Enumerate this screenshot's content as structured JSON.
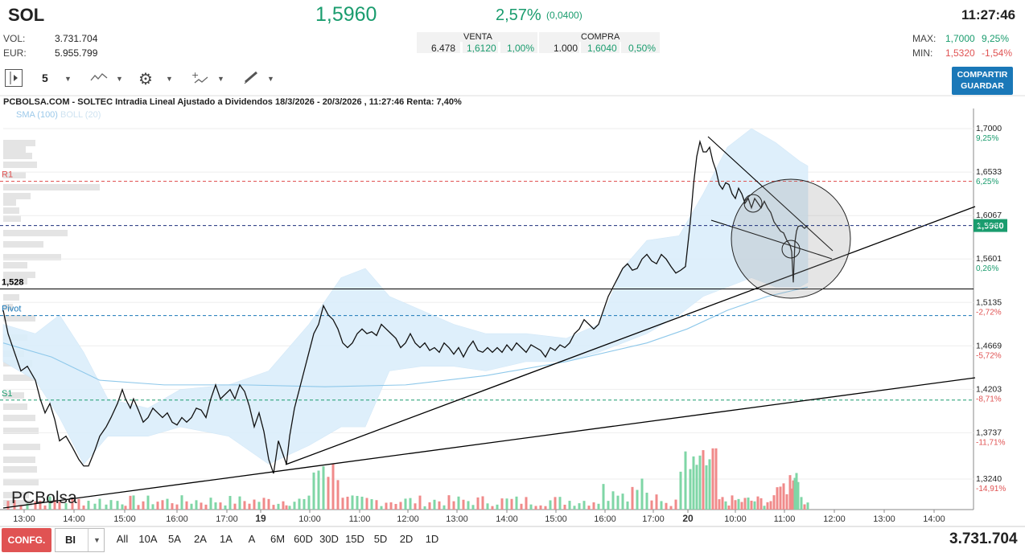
{
  "header": {
    "ticker": "SOL",
    "price": "1,5960",
    "change_pct": "2,57%",
    "change_abs": "(0,0400)",
    "time": "11:27:46",
    "vol_label": "VOL:",
    "vol_value": "3.731.704",
    "eur_label": "EUR:",
    "eur_value": "5.955.799",
    "venta_label": "VENTA",
    "venta_qty": "6.478",
    "venta_price": "1,6120",
    "venta_pct": "1,00%",
    "compra_label": "COMPRA",
    "compra_qty": "1.000",
    "compra_price": "1,6040",
    "compra_pct": "0,50%",
    "max_label": "MAX:",
    "max_value": "1,7000",
    "max_pct": "9,25%",
    "min_label": "MIN:",
    "min_value": "1,5320",
    "min_pct": "-1,54%"
  },
  "toolbar": {
    "interval": "5",
    "share_line1": "COMPARTIR",
    "share_line2": "GUARDAR",
    "icons": [
      "play-panel-icon",
      "line-chart-icon",
      "gear-icon",
      "indicators-icon",
      "draw-tool-icon"
    ]
  },
  "chart_title": "PCBOLSA.COM - SOLTEC Intradia Lineal Ajustado a Dividendos 18/3/2026 - 20/3/2026 , 11:27:46 Renta: 7,40%",
  "legend": {
    "sma": "SMA (100)",
    "boll": "BOLL (20)"
  },
  "watermark": "PCBolsa",
  "colors": {
    "up": "#1a9c6e",
    "down": "#e05353",
    "accent": "#1a78b8",
    "boll_fill": "#dbeefb",
    "sma": "#8ec8ea"
  },
  "chart_data": {
    "type": "line",
    "title": "PCBOLSA.COM - SOLTEC Intradia Lineal Ajustado a Dividendos 18/3/2026 - 20/3/2026 , 11:27:46 Renta: 7,40%",
    "x_tick_labels": [
      "13:00",
      "14:00",
      "15:00",
      "16:00",
      "17:00",
      "19",
      "10:00",
      "11:00",
      "12:00",
      "13:00",
      "14:00",
      "15:00",
      "16:00",
      "17:00",
      "20",
      "10:00",
      "11:00",
      "12:00",
      "13:00",
      "14:00"
    ],
    "y_ticks": [
      {
        "value": 1.7,
        "label": "1,7000",
        "pct": "9,25%"
      },
      {
        "value": 1.6533,
        "label": "1,6533",
        "pct": "6,25%"
      },
      {
        "value": 1.6067,
        "label": "1,6067",
        "pct": "3,26%"
      },
      {
        "value": 1.5601,
        "label": "1,5601",
        "pct": "0,26%"
      },
      {
        "value": 1.5135,
        "label": "1,5135",
        "pct": "-2,72%"
      },
      {
        "value": 1.4669,
        "label": "1,4669",
        "pct": "-5,72%"
      },
      {
        "value": 1.4203,
        "label": "1,4203",
        "pct": "-8,71%"
      },
      {
        "value": 1.3737,
        "label": "1,3737",
        "pct": "-11,71%"
      },
      {
        "value": 1.324,
        "label": "1,3240",
        "pct": "-14,91%"
      }
    ],
    "ylim": [
      1.3,
      1.71
    ],
    "last_price_label": "1,5960",
    "last_price": 1.596,
    "levels": [
      {
        "name": "R1",
        "value": 1.6435,
        "style": "dashed",
        "color": "#e05353"
      },
      {
        "name": "1,528",
        "value": 1.528,
        "style": "solid",
        "color": "#000000"
      },
      {
        "name": "Pivot",
        "value": 1.4994,
        "style": "dashed",
        "color": "#1a78b8"
      },
      {
        "name": "S1",
        "value": 1.4087,
        "style": "dashed",
        "color": "#1a9c6e"
      }
    ],
    "price_series": [
      [
        0,
        1.505
      ],
      [
        6,
        1.48
      ],
      [
        14,
        1.46
      ],
      [
        22,
        1.44
      ],
      [
        30,
        1.445
      ],
      [
        40,
        1.43
      ],
      [
        46,
        1.41
      ],
      [
        52,
        1.395
      ],
      [
        58,
        1.405
      ],
      [
        64,
        1.388
      ],
      [
        70,
        1.365
      ],
      [
        78,
        1.37
      ],
      [
        86,
        1.358
      ],
      [
        94,
        1.345
      ],
      [
        100,
        1.338
      ],
      [
        106,
        1.338
      ],
      [
        114,
        1.355
      ],
      [
        120,
        1.37
      ],
      [
        128,
        1.38
      ],
      [
        134,
        1.39
      ],
      [
        142,
        1.405
      ],
      [
        148,
        1.42
      ],
      [
        152,
        1.41
      ],
      [
        158,
        1.4
      ],
      [
        162,
        1.41
      ],
      [
        168,
        1.398
      ],
      [
        174,
        1.385
      ],
      [
        180,
        1.39
      ],
      [
        186,
        1.4
      ],
      [
        192,
        1.395
      ],
      [
        198,
        1.39
      ],
      [
        204,
        1.395
      ],
      [
        210,
        1.385
      ],
      [
        216,
        1.382
      ],
      [
        222,
        1.39
      ],
      [
        228,
        1.385
      ],
      [
        234,
        1.39
      ],
      [
        240,
        1.4
      ],
      [
        246,
        1.398
      ],
      [
        252,
        1.39
      ],
      [
        258,
        1.41
      ],
      [
        264,
        1.425
      ],
      [
        270,
        1.41
      ],
      [
        276,
        1.415
      ],
      [
        282,
        1.42
      ],
      [
        288,
        1.41
      ],
      [
        294,
        1.425
      ],
      [
        300,
        1.418
      ],
      [
        306,
        1.402
      ],
      [
        312,
        1.38
      ],
      [
        318,
        1.395
      ],
      [
        324,
        1.375
      ],
      [
        330,
        1.345
      ],
      [
        336,
        1.33
      ],
      [
        342,
        1.365
      ],
      [
        348,
        1.35
      ],
      [
        352,
        1.34
      ],
      [
        356,
        1.37
      ],
      [
        362,
        1.4
      ],
      [
        368,
        1.42
      ],
      [
        374,
        1.44
      ],
      [
        380,
        1.46
      ],
      [
        386,
        1.48
      ],
      [
        392,
        1.49
      ],
      [
        398,
        1.51
      ],
      [
        404,
        1.5
      ],
      [
        410,
        1.495
      ],
      [
        416,
        1.485
      ],
      [
        422,
        1.47
      ],
      [
        428,
        1.465
      ],
      [
        434,
        1.47
      ],
      [
        440,
        1.48
      ],
      [
        446,
        1.485
      ],
      [
        452,
        1.48
      ],
      [
        458,
        1.482
      ],
      [
        464,
        1.478
      ],
      [
        470,
        1.49
      ],
      [
        476,
        1.485
      ],
      [
        482,
        1.48
      ],
      [
        488,
        1.475
      ],
      [
        494,
        1.465
      ],
      [
        500,
        1.47
      ],
      [
        506,
        1.48
      ],
      [
        512,
        1.47
      ],
      [
        518,
        1.465
      ],
      [
        524,
        1.47
      ],
      [
        530,
        1.462
      ],
      [
        536,
        1.465
      ],
      [
        542,
        1.46
      ],
      [
        548,
        1.47
      ],
      [
        554,
        1.465
      ],
      [
        560,
        1.458
      ],
      [
        566,
        1.465
      ],
      [
        572,
        1.455
      ],
      [
        578,
        1.465
      ],
      [
        584,
        1.472
      ],
      [
        590,
        1.462
      ],
      [
        596,
        1.46
      ],
      [
        602,
        1.465
      ],
      [
        608,
        1.46
      ],
      [
        614,
        1.465
      ],
      [
        620,
        1.46
      ],
      [
        626,
        1.468
      ],
      [
        632,
        1.462
      ],
      [
        638,
        1.47
      ],
      [
        644,
        1.465
      ],
      [
        650,
        1.46
      ],
      [
        656,
        1.468
      ],
      [
        662,
        1.465
      ],
      [
        668,
        1.462
      ],
      [
        674,
        1.455
      ],
      [
        680,
        1.465
      ],
      [
        686,
        1.462
      ],
      [
        692,
        1.468
      ],
      [
        698,
        1.465
      ],
      [
        704,
        1.47
      ],
      [
        710,
        1.48
      ],
      [
        716,
        1.485
      ],
      [
        722,
        1.495
      ],
      [
        728,
        1.49
      ],
      [
        734,
        1.485
      ],
      [
        740,
        1.49
      ],
      [
        746,
        1.505
      ],
      [
        752,
        1.52
      ],
      [
        758,
        1.53
      ],
      [
        764,
        1.54
      ],
      [
        770,
        1.55
      ],
      [
        776,
        1.555
      ],
      [
        782,
        1.548
      ],
      [
        788,
        1.55
      ],
      [
        794,
        1.56
      ],
      [
        800,
        1.565
      ],
      [
        806,
        1.558
      ],
      [
        812,
        1.555
      ],
      [
        818,
        1.565
      ],
      [
        824,
        1.56
      ],
      [
        830,
        1.552
      ],
      [
        836,
        1.545
      ],
      [
        842,
        1.548
      ],
      [
        848,
        1.552
      ],
      [
        854,
        1.6
      ],
      [
        858,
        1.64
      ],
      [
        862,
        1.67
      ],
      [
        866,
        1.686
      ],
      [
        870,
        1.675
      ],
      [
        874,
        1.675
      ],
      [
        878,
        1.68
      ],
      [
        882,
        1.665
      ],
      [
        886,
        1.655
      ],
      [
        890,
        1.64
      ],
      [
        894,
        1.635
      ],
      [
        898,
        1.642
      ],
      [
        902,
        1.64
      ],
      [
        906,
        1.63
      ],
      [
        910,
        1.625
      ],
      [
        914,
        1.636
      ],
      [
        918,
        1.63
      ],
      [
        922,
        1.62
      ],
      [
        926,
        1.625
      ],
      [
        930,
        1.615
      ],
      [
        934,
        1.625
      ],
      [
        938,
        1.62
      ],
      [
        942,
        1.615
      ],
      [
        946,
        1.622
      ],
      [
        950,
        1.615
      ],
      [
        954,
        1.61
      ],
      [
        958,
        1.6
      ],
      [
        962,
        1.595
      ],
      [
        966,
        1.59
      ],
      [
        970,
        1.588
      ],
      [
        974,
        1.58
      ],
      [
        978,
        1.575
      ],
      [
        980,
        1.568
      ],
      [
        982,
        1.535
      ],
      [
        984,
        1.578
      ],
      [
        986,
        1.59
      ],
      [
        988,
        1.595
      ],
      [
        992,
        1.596
      ],
      [
        996,
        1.593
      ],
      [
        1000,
        1.596
      ]
    ],
    "sma_series": [
      [
        0,
        1.47
      ],
      [
        60,
        1.455
      ],
      [
        120,
        1.43
      ],
      [
        200,
        1.425
      ],
      [
        300,
        1.425
      ],
      [
        400,
        1.423
      ],
      [
        500,
        1.425
      ],
      [
        600,
        1.435
      ],
      [
        700,
        1.45
      ],
      [
        800,
        1.47
      ],
      [
        850,
        1.485
      ],
      [
        900,
        1.505
      ],
      [
        950,
        1.52
      ],
      [
        1000,
        1.53
      ]
    ],
    "boll_upper": [
      [
        0,
        1.49
      ],
      [
        40,
        1.48
      ],
      [
        70,
        1.5
      ],
      [
        100,
        1.46
      ],
      [
        130,
        1.41
      ],
      [
        180,
        1.4
      ],
      [
        220,
        1.42
      ],
      [
        280,
        1.425
      ],
      [
        330,
        1.44
      ],
      [
        380,
        1.49
      ],
      [
        420,
        1.54
      ],
      [
        450,
        1.55
      ],
      [
        480,
        1.52
      ],
      [
        520,
        1.505
      ],
      [
        560,
        1.49
      ],
      [
        600,
        1.48
      ],
      [
        650,
        1.48
      ],
      [
        700,
        1.475
      ],
      [
        740,
        1.49
      ],
      [
        770,
        1.55
      ],
      [
        800,
        1.58
      ],
      [
        840,
        1.585
      ],
      [
        870,
        1.63
      ],
      [
        900,
        1.68
      ],
      [
        930,
        1.7
      ],
      [
        960,
        1.685
      ],
      [
        990,
        1.665
      ],
      [
        1000,
        1.66
      ]
    ],
    "boll_lower": [
      [
        0,
        1.45
      ],
      [
        40,
        1.43
      ],
      [
        70,
        1.39
      ],
      [
        100,
        1.34
      ],
      [
        130,
        1.37
      ],
      [
        180,
        1.37
      ],
      [
        220,
        1.38
      ],
      [
        280,
        1.37
      ],
      [
        330,
        1.34
      ],
      [
        380,
        1.36
      ],
      [
        420,
        1.38
      ],
      [
        450,
        1.38
      ],
      [
        480,
        1.44
      ],
      [
        520,
        1.445
      ],
      [
        560,
        1.445
      ],
      [
        600,
        1.44
      ],
      [
        650,
        1.45
      ],
      [
        700,
        1.45
      ],
      [
        740,
        1.46
      ],
      [
        770,
        1.47
      ],
      [
        800,
        1.48
      ],
      [
        840,
        1.5
      ],
      [
        870,
        1.52
      ],
      [
        900,
        1.53
      ],
      [
        930,
        1.54
      ],
      [
        960,
        1.53
      ],
      [
        990,
        1.53
      ],
      [
        1000,
        1.535
      ]
    ]
  }
}
